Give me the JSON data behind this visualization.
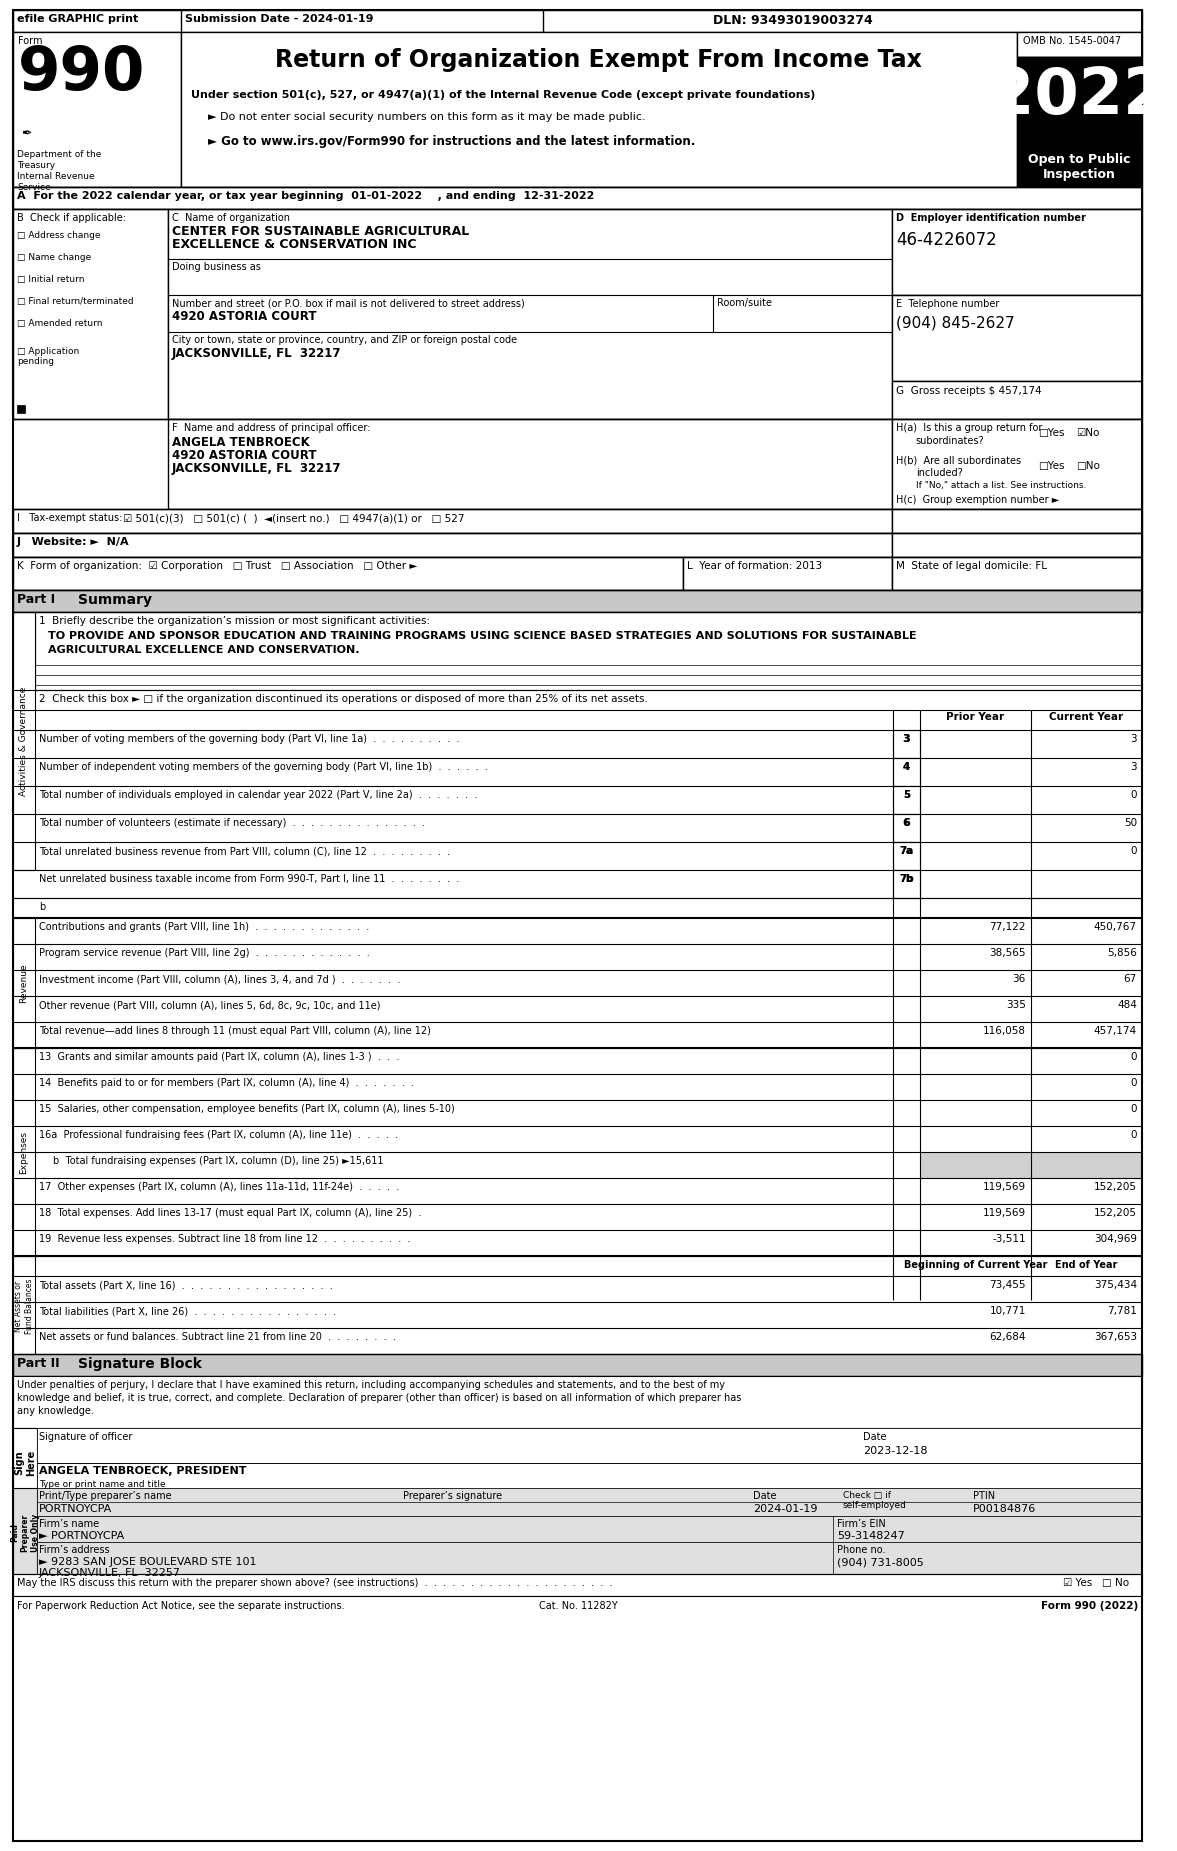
{
  "title": "Return of Organization Exempt From Income Tax",
  "subtitle1": "Under section 501(c), 527, or 4947(a)(1) of the Internal Revenue Code (except private foundations)",
  "subtitle2": "► Do not enter social security numbers on this form as it may be made public.",
  "subtitle3": "► Go to www.irs.gov/Form990 for instructions and the latest information.",
  "form_number": "990",
  "year": "2022",
  "omb": "OMB No. 1545-0047",
  "open_to_public": "Open to Public\nInspection",
  "efile_text": "efile GRAPHIC print",
  "submission_date": "Submission Date - 2024-01-19",
  "dln": "DLN: 93493019003274",
  "section_A": "A  For the 2022 calendar year, or tax year beginning  01-01-2022    , and ending  12-31-2022",
  "check_B": "B  Check if applicable:",
  "check_items": [
    "Address change",
    "Name change",
    "Initial return",
    "Final return/terminated",
    "Amended return",
    "Application",
    "pending"
  ],
  "org_name_label": "C  Name of organization",
  "org_name1": "CENTER FOR SUSTAINABLE AGRICULTURAL",
  "org_name2": "EXCELLENCE & CONSERVATION INC",
  "dba_label": "Doing business as",
  "address_label": "Number and street (or P.O. box if mail is not delivered to street address)",
  "address": "4920 ASTORIA COURT",
  "room_label": "Room/suite",
  "city_label": "City or town, state or province, country, and ZIP or foreign postal code",
  "city": "JACKSONVILLE, FL  32217",
  "ein_label": "D  Employer identification number",
  "ein": "46-4226072",
  "phone_label": "E  Telephone number",
  "phone": "(904) 845-2627",
  "gross": "457,174",
  "principal_label": "F  Name and address of principal officer:",
  "principal1": "ANGELA TENBROECK",
  "principal2": "4920 ASTORIA COURT",
  "principal3": "JACKSONVILLE, FL  32217",
  "mission_line1": "TO PROVIDE AND SPONSOR EDUCATION AND TRAINING PROGRAMS USING SCIENCE BASED STRATEGIES AND SOLUTIONS FOR SUSTAINABLE",
  "mission_line2": "AGRICULTURAL EXCELLENCE AND CONSERVATION.",
  "sign_text1": "Under penalties of perjury, I declare that I have examined this return, including accompanying schedules and statements, and to the best of my",
  "sign_text2": "knowledge and belief, it is true, correct, and complete. Declaration of preparer (other than officer) is based on all information of which preparer has",
  "sign_text3": "any knowledge.",
  "sign_date": "2023-12-18",
  "sign_name": "ANGELA TENBROECK, PRESIDENT",
  "sign_type": "Type or print name and title",
  "preparer_name": "PORTNOYCPA",
  "prep_date": "2024-01-19",
  "ptin": "P00184876",
  "firm_name": "► PORTNOYCPA",
  "firm_ein": "59-3148247",
  "firm_address1": "► 9283 SAN JOSE BOULEVARD STE 101",
  "firm_address2": "JACKSONVILLE, FL  32257",
  "firm_phone": "(904) 731-8005",
  "discuss_label": "May the IRS discuss this return with the preparer shown above? (see instructions)  .  .  .  .  .  .  .  .  .  .  .  .  .  .  .  .  .  .  .  .  .",
  "cat_label": "Cat. No. 11282Y",
  "form_footer": "Form 990 (2022)",
  "paperwork_label": "For Paperwork Reduction Act Notice, see the separate instructions.",
  "lines_gov": [
    {
      "num": "3",
      "label_num": "3",
      "text": "Number of voting members of the governing body (Part VI, line 1a)  .  .  .  .  .  .  .  .  .  .",
      "prior": "",
      "current": "3"
    },
    {
      "num": "4",
      "label_num": "4",
      "text": "Number of independent voting members of the governing body (Part VI, line 1b)  .  .  .  .  .  .",
      "prior": "",
      "current": "3"
    },
    {
      "num": "5",
      "label_num": "5",
      "text": "Total number of individuals employed in calendar year 2022 (Part V, line 2a)  .  .  .  .  .  .  .",
      "prior": "",
      "current": "0"
    },
    {
      "num": "6",
      "label_num": "6",
      "text": "Total number of volunteers (estimate if necessary)  .  .  .  .  .  .  .  .  .  .  .  .  .  .  .",
      "prior": "",
      "current": "50"
    },
    {
      "num": "7a",
      "label_num": "7a",
      "text": "Total unrelated business revenue from Part VIII, column (C), line 12  .  .  .  .  .  .  .  .  .",
      "prior": "",
      "current": "0"
    },
    {
      "num": "7b",
      "label_num": "7b",
      "text": "Net unrelated business taxable income from Form 990-T, Part I, line 11  .  .  .  .  .  .  .  .",
      "prior": "",
      "current": ""
    }
  ],
  "revenue_lines": [
    {
      "num": "8",
      "text": "Contributions and grants (Part VIII, line 1h)  .  .  .  .  .  .  .  .  .  .  .  .  .",
      "prior": "77,122",
      "current": "450,767"
    },
    {
      "num": "9",
      "text": "Program service revenue (Part VIII, line 2g)  .  .  .  .  .  .  .  .  .  .  .  .  .",
      "prior": "38,565",
      "current": "5,856"
    },
    {
      "num": "10",
      "text": "Investment income (Part VIII, column (A), lines 3, 4, and 7d )  .  .  .  .  .  .  .",
      "prior": "36",
      "current": "67"
    },
    {
      "num": "11",
      "text": "Other revenue (Part VIII, column (A), lines 5, 6d, 8c, 9c, 10c, and 11e)",
      "prior": "335",
      "current": "484"
    },
    {
      "num": "12",
      "text": "Total revenue—add lines 8 through 11 (must equal Part VIII, column (A), line 12)",
      "prior": "116,058",
      "current": "457,174"
    }
  ],
  "expense_lines": [
    {
      "num": "13",
      "text": "Grants and similar amounts paid (Part IX, column (A), lines 1-3 )  .  .  .",
      "prior": "",
      "current": "0",
      "gray": false
    },
    {
      "num": "14",
      "text": "Benefits paid to or for members (Part IX, column (A), line 4)  .  .  .  .  .  .  .",
      "prior": "",
      "current": "0",
      "gray": false
    },
    {
      "num": "15",
      "text": "Salaries, other compensation, employee benefits (Part IX, column (A), lines 5-10)",
      "prior": "",
      "current": "0",
      "gray": false
    },
    {
      "num": "16a",
      "text": "Professional fundraising fees (Part IX, column (A), line 11e)  .  .  .  .  .",
      "prior": "",
      "current": "0",
      "gray": false
    },
    {
      "num": "b",
      "text": "Total fundraising expenses (Part IX, column (D), line 25) ►15,611",
      "prior": "",
      "current": "",
      "gray": true
    },
    {
      "num": "17",
      "text": "Other expenses (Part IX, column (A), lines 11a-11d, 11f-24e)  .  .  .  .  .",
      "prior": "119,569",
      "current": "152,205",
      "gray": false
    },
    {
      "num": "18",
      "text": "Total expenses. Add lines 13-17 (must equal Part IX, column (A), line 25)  .",
      "prior": "119,569",
      "current": "152,205",
      "gray": false
    },
    {
      "num": "19",
      "text": "Revenue less expenses. Subtract line 18 from line 12  .  .  .  .  .  .  .  .  .  .",
      "prior": "-3,511",
      "current": "304,969",
      "gray": false
    }
  ],
  "net_asset_lines": [
    {
      "num": "20",
      "text": "Total assets (Part X, line 16)  .  .  .  .  .  .  .  .  .  .  .  .  .  .  .  .  .",
      "prior": "73,455",
      "current": "375,434"
    },
    {
      "num": "21",
      "text": "Total liabilities (Part X, line 26)  .  .  .  .  .  .  .  .  .  .  .  .  .  .  .  .",
      "prior": "10,771",
      "current": "7,781"
    },
    {
      "num": "22",
      "text": "Net assets or fund balances. Subtract line 21 from line 20  .  .  .  .  .  .  .  .",
      "prior": "62,684",
      "current": "367,653"
    }
  ]
}
